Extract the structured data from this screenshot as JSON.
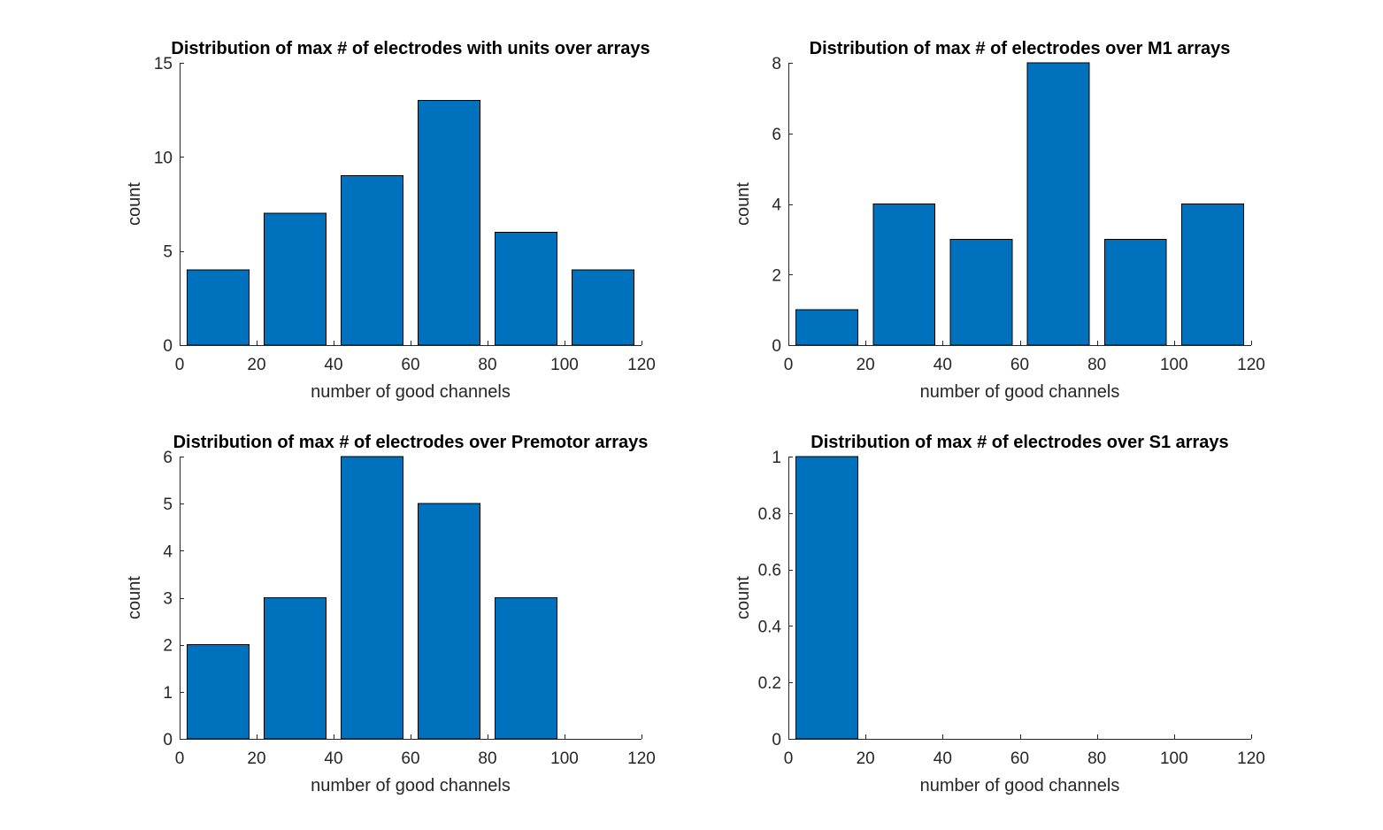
{
  "chart_data": [
    {
      "type": "bar",
      "title": "Distribution of max # of electrodes with units over arrays",
      "xlabel": "number of good channels",
      "ylabel": "count",
      "x": [
        10,
        30,
        50,
        70,
        90,
        110
      ],
      "bin_width": 20,
      "values": [
        4,
        7,
        9,
        13,
        6,
        4
      ],
      "xlim": [
        0,
        120
      ],
      "ylim": [
        0,
        15
      ],
      "xticks": [
        0,
        20,
        40,
        60,
        80,
        100,
        120
      ],
      "yticks": [
        0,
        5,
        10,
        15
      ],
      "color": "#0072BD"
    },
    {
      "type": "bar",
      "title": "Distribution of max # of electrodes over M1 arrays",
      "xlabel": "number of good channels",
      "ylabel": "count",
      "x": [
        10,
        30,
        50,
        70,
        90,
        110
      ],
      "bin_width": 20,
      "values": [
        1,
        4,
        3,
        8,
        3,
        4
      ],
      "xlim": [
        0,
        120
      ],
      "ylim": [
        0,
        8
      ],
      "xticks": [
        0,
        20,
        40,
        60,
        80,
        100,
        120
      ],
      "yticks": [
        0,
        2,
        4,
        6,
        8
      ],
      "color": "#0072BD"
    },
    {
      "type": "bar",
      "title": "Distribution of max # of electrodes over Premotor arrays",
      "xlabel": "number of good channels",
      "ylabel": "count",
      "x": [
        10,
        30,
        50,
        70,
        90
      ],
      "bin_width": 20,
      "values": [
        2,
        3,
        6,
        5,
        3
      ],
      "xlim": [
        0,
        120
      ],
      "ylim": [
        0,
        6
      ],
      "xticks": [
        0,
        20,
        40,
        60,
        80,
        100,
        120
      ],
      "yticks": [
        0,
        1,
        2,
        3,
        4,
        5,
        6
      ],
      "color": "#0072BD"
    },
    {
      "type": "bar",
      "title": "Distribution of max # of electrodes over S1 arrays",
      "xlabel": "number of good channels",
      "ylabel": "count",
      "x": [
        10
      ],
      "bin_width": 20,
      "values": [
        1
      ],
      "xlim": [
        0,
        120
      ],
      "ylim": [
        0,
        1
      ],
      "xticks": [
        0,
        20,
        40,
        60,
        80,
        100,
        120
      ],
      "yticks": [
        0,
        0.2,
        0.4,
        0.6,
        0.8,
        1
      ],
      "color": "#0072BD"
    }
  ]
}
